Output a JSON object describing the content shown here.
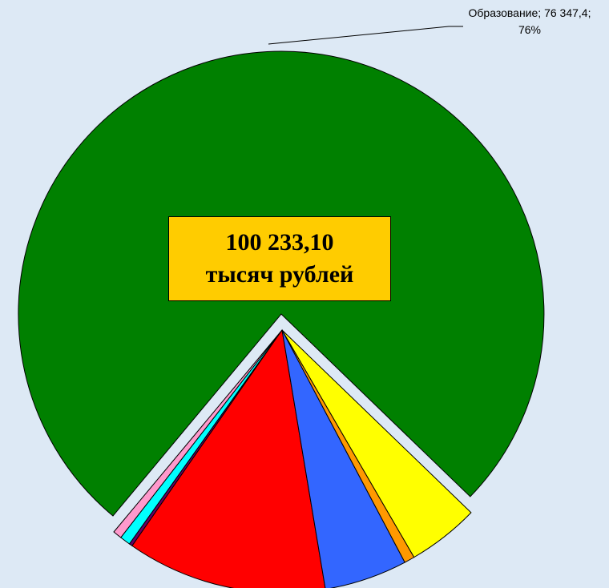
{
  "chart_data": {
    "type": "pie",
    "categories": [
      "Образование",
      null,
      null,
      null,
      null,
      null,
      null,
      null
    ],
    "values": [
      76347.4,
      4410,
      640,
      5110,
      12330,
      200,
      650,
      545.7
    ],
    "value_labels": [
      "Образование; 76 347,4; 76%",
      null,
      null,
      null,
      null,
      null,
      null,
      null
    ],
    "colors": [
      "#008000",
      "#ffff00",
      "#ff9900",
      "#3366ff",
      "#ff0000",
      "#660066",
      "#00ffff",
      "#ff99cc"
    ],
    "annotations": [
      "100 233,10",
      "тысяч рублей"
    ]
  }
}
